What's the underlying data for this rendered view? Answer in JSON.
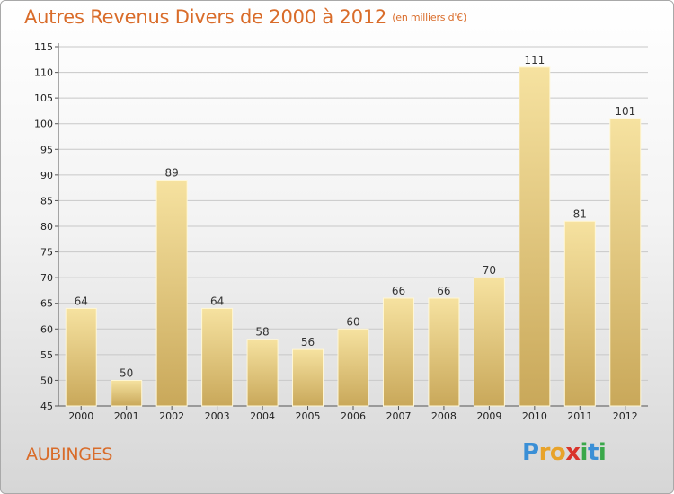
{
  "title": "Autres Revenus Divers de 2000 à 2012",
  "subtitle": "(en milliers d'€)",
  "commune": "AUBINGES",
  "logo": {
    "letters": [
      "P",
      "r",
      "o",
      "x",
      "i",
      "t",
      "i"
    ],
    "colors": [
      "#3a8fd6",
      "#e8a32a",
      "#e8a32a",
      "#d9342b",
      "#3aa84a",
      "#3a8fd6",
      "#3aa84a"
    ]
  },
  "colors": {
    "title": "#d96c2a",
    "bar_light": "#f6e2a0",
    "bar_dark": "#c9a85a"
  },
  "chart_data": {
    "type": "bar",
    "categories": [
      "2000",
      "2001",
      "2002",
      "2003",
      "2004",
      "2005",
      "2006",
      "2007",
      "2008",
      "2009",
      "2010",
      "2011",
      "2012"
    ],
    "values": [
      64,
      50,
      89,
      64,
      58,
      56,
      60,
      66,
      66,
      70,
      111,
      81,
      101
    ],
    "ylim": [
      45,
      115
    ],
    "yticks": [
      45,
      50,
      55,
      60,
      65,
      70,
      75,
      80,
      85,
      90,
      95,
      100,
      105,
      110,
      115
    ],
    "grid": true,
    "xlabel": "",
    "ylabel": ""
  }
}
